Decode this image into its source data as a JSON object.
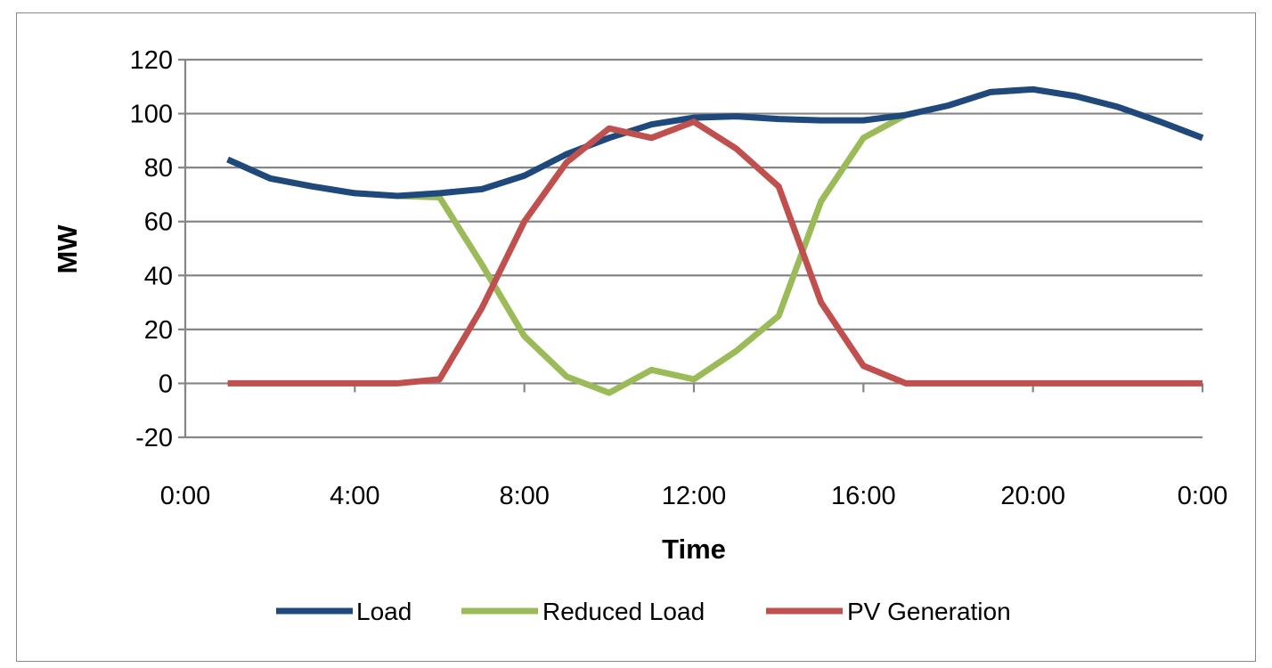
{
  "chart_data": {
    "type": "line",
    "title": "",
    "xlabel": "Time",
    "ylabel": "MW",
    "ylim": [
      -20,
      120
    ],
    "yticks": [
      "-20",
      "0",
      "20",
      "40",
      "60",
      "80",
      "100",
      "120"
    ],
    "xticks": [
      "0:00",
      "4:00",
      "8:00",
      "12:00",
      "16:00",
      "20:00",
      "0:00"
    ],
    "grid": true,
    "legend_position": "bottom",
    "x_hours": [
      1,
      2,
      3,
      4,
      5,
      6,
      7,
      8,
      9,
      10,
      11,
      12,
      13,
      14,
      15,
      16,
      17,
      18,
      19,
      20,
      21,
      22,
      23,
      24
    ],
    "series": [
      {
        "name": "Load",
        "color": "#1f497d",
        "values": [
          83,
          76,
          73,
          70.5,
          69.5,
          70.5,
          72,
          77,
          85,
          91,
          96,
          98.5,
          99,
          98,
          97.5,
          97.5,
          99.5,
          103,
          108,
          109,
          106.5,
          102.5,
          97,
          91
        ]
      },
      {
        "name": "Reduced Load",
        "color": "#9bbb59",
        "values": [
          83,
          76,
          73,
          70.5,
          69.5,
          69,
          44,
          17.5,
          2.5,
          -3.5,
          5,
          1.5,
          12,
          25,
          67.5,
          91,
          99.5,
          103,
          108,
          109,
          106.5,
          102.5,
          97,
          91
        ]
      },
      {
        "name": "PV Generation",
        "color": "#c0504d",
        "values": [
          0,
          0,
          0,
          0,
          0,
          1.5,
          28,
          60,
          82,
          94.5,
          91,
          97,
          87,
          73,
          30,
          6.5,
          0,
          0,
          0,
          0,
          0,
          0,
          0,
          0
        ]
      }
    ]
  }
}
